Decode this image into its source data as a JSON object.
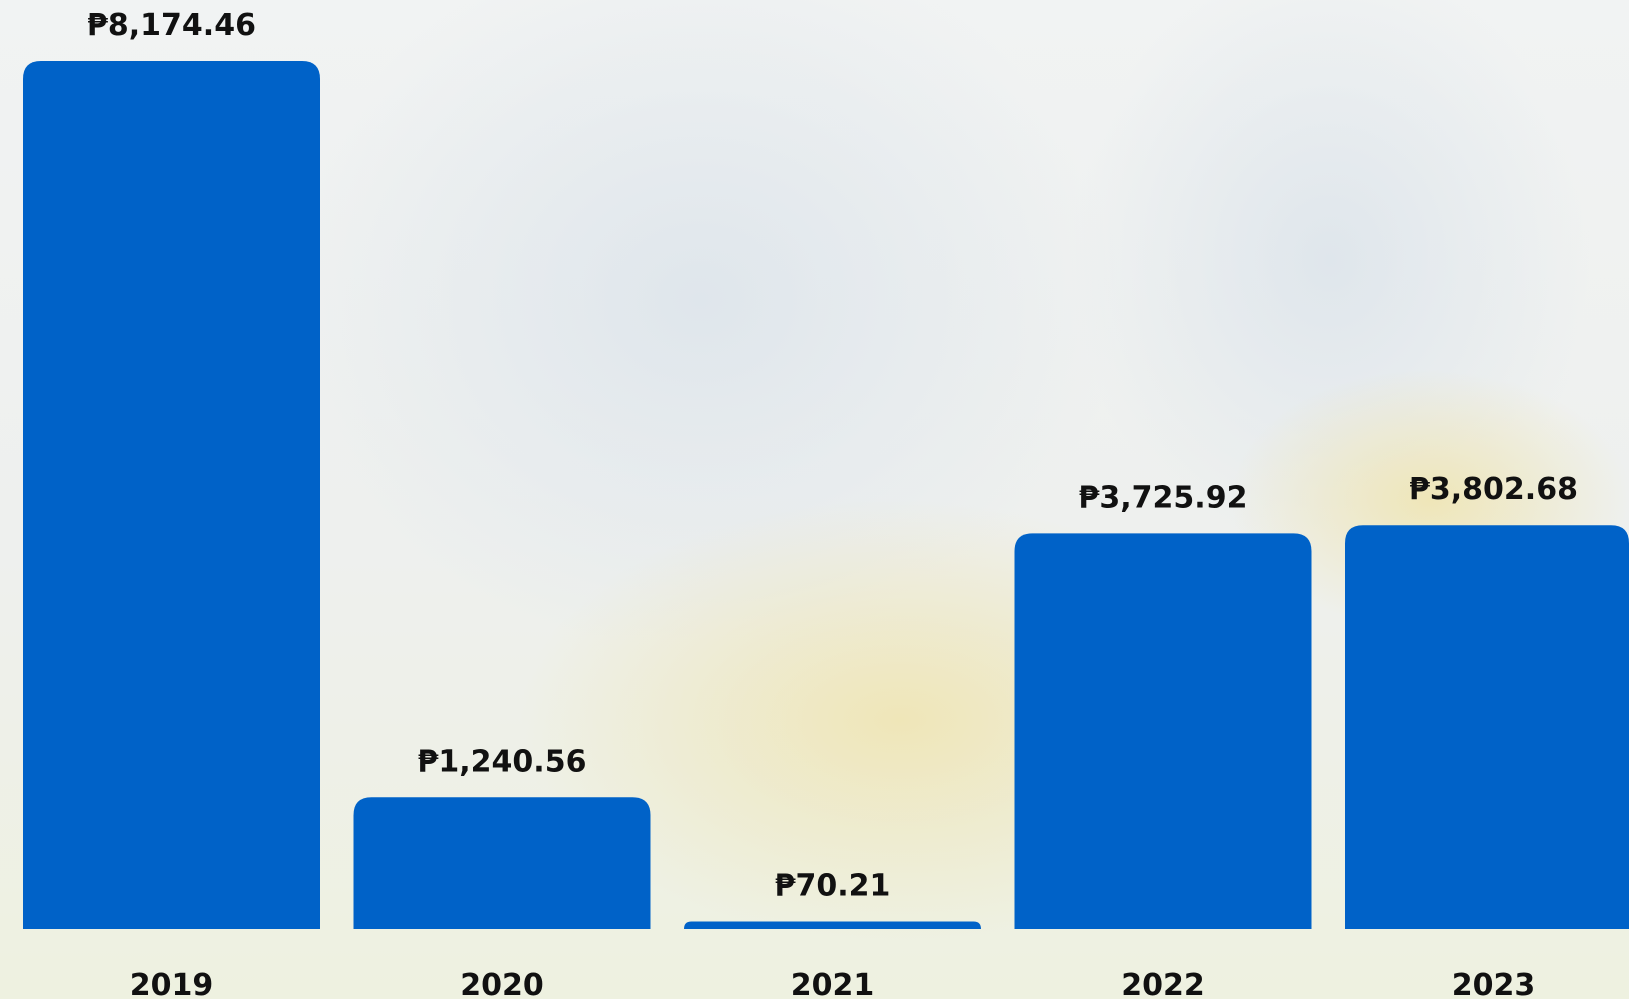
{
  "chart_data": {
    "type": "bar",
    "categories": [
      "2019",
      "2020",
      "2021",
      "2022",
      "2023"
    ],
    "values": [
      8174.46,
      1240.56,
      70.21,
      3725.92,
      3802.68
    ],
    "value_labels": [
      "₱8,174.46",
      "₱1,240.56",
      "₱70.21",
      "₱3,725.92",
      "₱3,802.68"
    ],
    "color": "#0062c8"
  }
}
